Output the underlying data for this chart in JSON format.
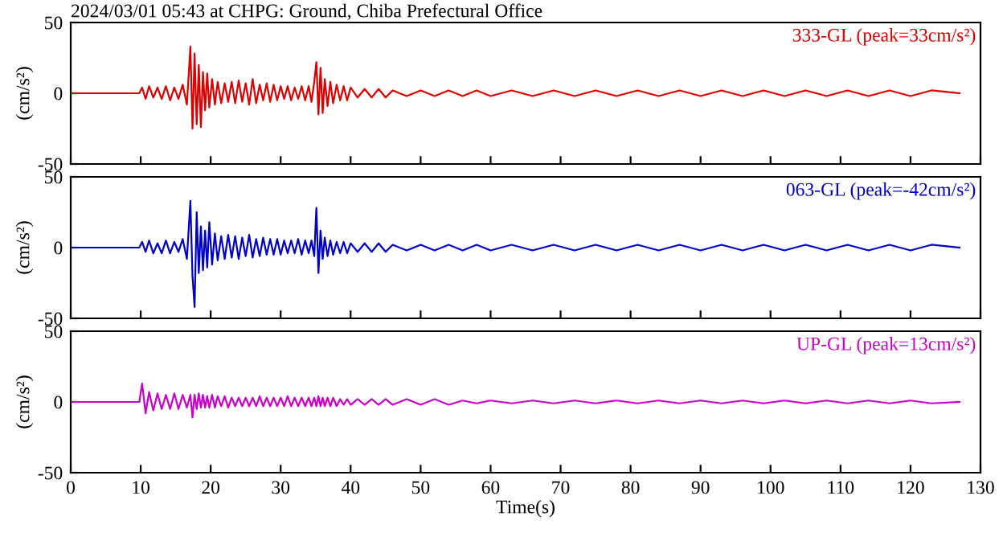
{
  "chart_data": [
    {
      "type": "line",
      "title": "2024/03/01 05:43 at CHPG: Ground, Chiba Prefectural Office",
      "ylabel": "(cm/s²)",
      "xlim": [
        0,
        130
      ],
      "ylim": [
        -50,
        50
      ],
      "xticks": [
        0,
        10,
        20,
        30,
        40,
        50,
        60,
        70,
        80,
        90,
        100,
        110,
        120,
        130
      ],
      "yticks": [
        -50,
        0,
        50
      ],
      "tick_labels": "y",
      "grid": false,
      "marker": "none",
      "line_style": "solid",
      "x": [
        0,
        9.8,
        10.2,
        10.7,
        11.2,
        11.8,
        12.4,
        13,
        13.6,
        14.2,
        14.8,
        15.4,
        16,
        16.6,
        17.1,
        17.4,
        17.7,
        18,
        18.3,
        18.6,
        18.9,
        19.2,
        19.5,
        19.8,
        20.2,
        20.6,
        21,
        21.5,
        22,
        22.5,
        23,
        23.5,
        24,
        24.5,
        25,
        25.5,
        26,
        26.5,
        27,
        27.5,
        28,
        28.5,
        29,
        29.5,
        30,
        30.5,
        31,
        31.5,
        32,
        32.5,
        33,
        33.5,
        34,
        34.4,
        34.8,
        35.1,
        35.4,
        35.7,
        36,
        36.3,
        36.7,
        37.1,
        37.5,
        38,
        38.5,
        39,
        39.5,
        40,
        41,
        42,
        43,
        44,
        45,
        46,
        48,
        50,
        52,
        54,
        56,
        58,
        60,
        63,
        66,
        69,
        72,
        75,
        78,
        81,
        84,
        87,
        90,
        93,
        96,
        99,
        102,
        105,
        108,
        111,
        114,
        117,
        120,
        123,
        127
      ],
      "series": [
        {
          "name": "333-GL (peak=33cm/s²)",
          "color": "#dd0000",
          "values": [
            0,
            0,
            4,
            -4,
            5,
            -3,
            4,
            -4,
            5,
            -5,
            4,
            -4,
            6,
            -8,
            33,
            -25,
            28,
            -22,
            20,
            -24,
            15,
            -12,
            14,
            -10,
            10,
            -8,
            8,
            -7,
            7,
            -6,
            8,
            -7,
            9,
            -6,
            7,
            -8,
            10,
            -7,
            6,
            -5,
            7,
            -6,
            6,
            -5,
            5,
            -4,
            5,
            -5,
            4,
            -4,
            5,
            -5,
            5,
            -6,
            8,
            22,
            -15,
            18,
            -14,
            10,
            -9,
            8,
            -7,
            6,
            -5,
            5,
            -5,
            4,
            -3,
            3,
            -3,
            3,
            -3,
            2,
            -2,
            2,
            -2,
            2,
            -2,
            2,
            -2,
            2,
            -2,
            2,
            -2,
            2,
            -2,
            2,
            -2,
            2,
            -2,
            2,
            -2,
            2,
            -2,
            2,
            -2,
            2,
            -2,
            2,
            -2,
            2,
            0
          ]
        }
      ]
    },
    {
      "type": "line",
      "ylabel": "(cm/s²)",
      "xlim": [
        0,
        130
      ],
      "ylim": [
        -50,
        50
      ],
      "xticks": [
        0,
        10,
        20,
        30,
        40,
        50,
        60,
        70,
        80,
        90,
        100,
        110,
        120,
        130
      ],
      "yticks": [
        -50,
        0,
        50
      ],
      "tick_labels": "y",
      "grid": false,
      "marker": "none",
      "line_style": "solid",
      "x": [
        0,
        9.8,
        10.2,
        10.7,
        11.2,
        11.8,
        12.4,
        13,
        13.6,
        14.2,
        14.8,
        15.4,
        16,
        16.6,
        17.1,
        17.4,
        17.7,
        18,
        18.3,
        18.6,
        18.9,
        19.2,
        19.5,
        19.8,
        20.2,
        20.6,
        21,
        21.5,
        22,
        22.5,
        23,
        23.5,
        24,
        24.5,
        25,
        25.5,
        26,
        26.5,
        27,
        27.5,
        28,
        28.5,
        29,
        29.5,
        30,
        30.5,
        31,
        31.5,
        32,
        32.5,
        33,
        33.5,
        34,
        34.4,
        34.8,
        35.1,
        35.4,
        35.7,
        36,
        36.3,
        36.7,
        37.1,
        37.5,
        38,
        38.5,
        39,
        39.5,
        40,
        41,
        42,
        43,
        44,
        45,
        46,
        48,
        50,
        52,
        54,
        56,
        58,
        60,
        63,
        66,
        69,
        72,
        75,
        78,
        81,
        84,
        87,
        90,
        93,
        96,
        99,
        102,
        105,
        108,
        111,
        114,
        117,
        120,
        123,
        127
      ],
      "series": [
        {
          "name": "063-GL (peak=-42cm/s²)",
          "color": "#0000cc",
          "values": [
            0,
            0,
            4,
            -3,
            5,
            -4,
            3,
            -4,
            5,
            -4,
            4,
            -3,
            6,
            -8,
            33,
            -20,
            -42,
            25,
            -18,
            15,
            -16,
            12,
            -14,
            18,
            -12,
            10,
            -9,
            8,
            -8,
            9,
            -7,
            8,
            -8,
            7,
            -6,
            9,
            -7,
            6,
            -6,
            7,
            -5,
            6,
            -5,
            6,
            -5,
            5,
            -4,
            5,
            -4,
            6,
            -5,
            5,
            -4,
            5,
            -6,
            28,
            -18,
            12,
            -8,
            7,
            -6,
            5,
            -5,
            4,
            -4,
            4,
            -4,
            3,
            -3,
            3,
            -3,
            3,
            -3,
            2,
            -2,
            2,
            -2,
            2,
            -2,
            2,
            -2,
            2,
            -2,
            2,
            -2,
            2,
            -2,
            2,
            -2,
            2,
            -2,
            2,
            -2,
            2,
            -2,
            2,
            -2,
            2,
            -2,
            2,
            -2,
            2,
            0
          ]
        }
      ]
    },
    {
      "type": "line",
      "xlabel": "Time(s)",
      "ylabel": "(cm/s²)",
      "xlim": [
        0,
        130
      ],
      "ylim": [
        -50,
        50
      ],
      "xticks": [
        0,
        10,
        20,
        30,
        40,
        50,
        60,
        70,
        80,
        90,
        100,
        110,
        120,
        130
      ],
      "yticks": [
        -50,
        0,
        50
      ],
      "grid": false,
      "marker": "none",
      "line_style": "solid",
      "x": [
        0,
        9.8,
        10.2,
        10.7,
        11.2,
        11.8,
        12.4,
        13,
        13.6,
        14.2,
        14.8,
        15.4,
        16,
        16.6,
        17.1,
        17.4,
        17.7,
        18,
        18.3,
        18.6,
        18.9,
        19.2,
        19.5,
        19.8,
        20.2,
        20.6,
        21,
        21.5,
        22,
        22.5,
        23,
        23.5,
        24,
        24.5,
        25,
        25.5,
        26,
        26.5,
        27,
        27.5,
        28,
        28.5,
        29,
        29.5,
        30,
        30.5,
        31,
        31.5,
        32,
        32.5,
        33,
        33.5,
        34,
        34.4,
        34.8,
        35.1,
        35.4,
        35.7,
        36,
        36.3,
        36.7,
        37.1,
        37.5,
        38,
        38.5,
        39,
        39.5,
        40,
        41,
        42,
        43,
        44,
        45,
        46,
        48,
        50,
        52,
        54,
        56,
        58,
        60,
        63,
        66,
        69,
        72,
        75,
        78,
        81,
        84,
        87,
        90,
        93,
        96,
        99,
        102,
        105,
        108,
        111,
        114,
        117,
        120,
        123,
        127
      ],
      "series": [
        {
          "name": "UP-GL (peak=13cm/s²)",
          "color": "#cc00cc",
          "values": [
            0,
            0,
            13,
            -8,
            7,
            -6,
            6,
            -5,
            5,
            -5,
            6,
            -5,
            5,
            -4,
            5,
            -11,
            5,
            -5,
            6,
            -4,
            5,
            -4,
            4,
            -4,
            5,
            -4,
            4,
            -3,
            4,
            -4,
            3,
            -3,
            3,
            -3,
            3,
            -3,
            3,
            -3,
            4,
            -3,
            3,
            -3,
            3,
            -3,
            3,
            -3,
            4,
            -3,
            3,
            -3,
            3,
            -3,
            3,
            -3,
            3,
            -3,
            4,
            -3,
            3,
            -3,
            3,
            -3,
            3,
            -3,
            2,
            -2,
            2,
            -2,
            2,
            -2,
            2,
            -2,
            2,
            -2,
            2,
            -2,
            2,
            -2,
            1,
            -1,
            1,
            -1,
            1,
            -1,
            1,
            -1,
            1,
            -1,
            1,
            -1,
            1,
            -1,
            1,
            -1,
            1,
            -1,
            1,
            -1,
            1,
            -1,
            1,
            -1,
            0
          ]
        }
      ]
    }
  ]
}
